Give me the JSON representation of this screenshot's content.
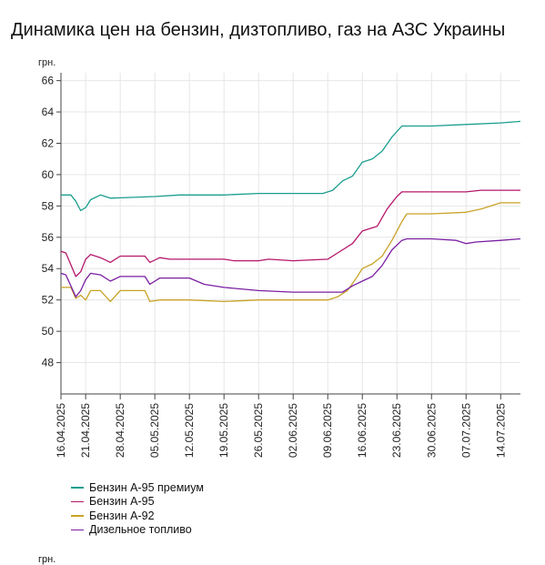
{
  "title": "Динамика цен на бензин, дизтопливо, газ на АЗС Украины",
  "footer_unit": "грн.",
  "chart_data": {
    "type": "line",
    "ylabel": "грн.",
    "ylim": [
      46,
      66.5
    ],
    "yticks": [
      48,
      50,
      52,
      54,
      56,
      58,
      60,
      62,
      64,
      66
    ],
    "x_start": "2025-04-16",
    "x_end": "2025-07-18",
    "xticks": [
      "16.04.2025",
      "21.04.2025",
      "28.04.2025",
      "05.05.2025",
      "12.05.2025",
      "19.05.2025",
      "26.05.2025",
      "02.06.2025",
      "09.06.2025",
      "16.06.2025",
      "23.06.2025",
      "30.06.2025",
      "07.07.2025",
      "14.07.2025"
    ],
    "series": [
      {
        "name": "Бензин А-95 премиум",
        "color": "#1a9e8f",
        "points": [
          [
            "16.04.2025",
            58.7
          ],
          [
            "18.04.2025",
            58.7
          ],
          [
            "19.04.2025",
            58.3
          ],
          [
            "20.04.2025",
            57.7
          ],
          [
            "21.04.2025",
            57.9
          ],
          [
            "22.04.2025",
            58.4
          ],
          [
            "24.04.2025",
            58.7
          ],
          [
            "26.04.2025",
            58.5
          ],
          [
            "05.05.2025",
            58.6
          ],
          [
            "10.05.2025",
            58.7
          ],
          [
            "19.05.2025",
            58.7
          ],
          [
            "26.05.2025",
            58.8
          ],
          [
            "02.06.2025",
            58.8
          ],
          [
            "08.06.2025",
            58.8
          ],
          [
            "10.06.2025",
            59.0
          ],
          [
            "12.06.2025",
            59.6
          ],
          [
            "14.06.2025",
            59.9
          ],
          [
            "16.06.2025",
            60.8
          ],
          [
            "18.06.2025",
            61.0
          ],
          [
            "20.06.2025",
            61.5
          ],
          [
            "22.06.2025",
            62.4
          ],
          [
            "24.06.2025",
            63.1
          ],
          [
            "30.06.2025",
            63.1
          ],
          [
            "07.07.2025",
            63.2
          ],
          [
            "14.07.2025",
            63.3
          ],
          [
            "18.07.2025",
            63.4
          ]
        ]
      },
      {
        "name": "Бензин А-95",
        "color": "#b5176b",
        "points": [
          [
            "16.04.2025",
            55.1
          ],
          [
            "17.04.2025",
            55.0
          ],
          [
            "19.04.2025",
            53.5
          ],
          [
            "20.04.2025",
            53.8
          ],
          [
            "21.04.2025",
            54.6
          ],
          [
            "22.04.2025",
            54.9
          ],
          [
            "24.04.2025",
            54.7
          ],
          [
            "26.04.2025",
            54.4
          ],
          [
            "28.04.2025",
            54.8
          ],
          [
            "03.05.2025",
            54.8
          ],
          [
            "04.05.2025",
            54.4
          ],
          [
            "06.05.2025",
            54.7
          ],
          [
            "08.05.2025",
            54.6
          ],
          [
            "12.05.2025",
            54.6
          ],
          [
            "19.05.2025",
            54.6
          ],
          [
            "21.05.2025",
            54.5
          ],
          [
            "26.05.2025",
            54.5
          ],
          [
            "28.05.2025",
            54.6
          ],
          [
            "02.06.2025",
            54.5
          ],
          [
            "09.06.2025",
            54.6
          ],
          [
            "11.06.2025",
            55.0
          ],
          [
            "14.06.2025",
            55.6
          ],
          [
            "16.06.2025",
            56.4
          ],
          [
            "19.06.2025",
            56.7
          ],
          [
            "21.06.2025",
            57.8
          ],
          [
            "23.06.2025",
            58.6
          ],
          [
            "24.06.2025",
            58.9
          ],
          [
            "30.06.2025",
            58.9
          ],
          [
            "07.07.2025",
            58.9
          ],
          [
            "10.07.2025",
            59.0
          ],
          [
            "18.07.2025",
            59.0
          ]
        ]
      },
      {
        "name": "Бензин А-92",
        "color": "#c9a227",
        "points": [
          [
            "16.04.2025",
            52.8
          ],
          [
            "18.04.2025",
            52.8
          ],
          [
            "19.04.2025",
            52.1
          ],
          [
            "20.04.2025",
            52.3
          ],
          [
            "21.04.2025",
            52.0
          ],
          [
            "22.04.2025",
            52.6
          ],
          [
            "24.04.2025",
            52.6
          ],
          [
            "26.04.2025",
            51.9
          ],
          [
            "28.04.2025",
            52.6
          ],
          [
            "03.05.2025",
            52.6
          ],
          [
            "04.05.2025",
            51.9
          ],
          [
            "06.05.2025",
            52.0
          ],
          [
            "12.05.2025",
            52.0
          ],
          [
            "19.05.2025",
            51.9
          ],
          [
            "26.05.2025",
            52.0
          ],
          [
            "02.06.2025",
            52.0
          ],
          [
            "09.06.2025",
            52.0
          ],
          [
            "11.06.2025",
            52.2
          ],
          [
            "13.06.2025",
            52.6
          ],
          [
            "15.06.2025",
            53.5
          ],
          [
            "16.06.2025",
            54.0
          ],
          [
            "18.06.2025",
            54.3
          ],
          [
            "20.06.2025",
            54.8
          ],
          [
            "22.06.2025",
            55.8
          ],
          [
            "24.06.2025",
            57.0
          ],
          [
            "25.06.2025",
            57.5
          ],
          [
            "30.06.2025",
            57.5
          ],
          [
            "07.07.2025",
            57.6
          ],
          [
            "10.07.2025",
            57.8
          ],
          [
            "14.07.2025",
            58.2
          ],
          [
            "18.07.2025",
            58.2
          ]
        ]
      },
      {
        "name": "Дизельное топливо",
        "color": "#7b1fa2",
        "points": [
          [
            "16.04.2025",
            53.7
          ],
          [
            "17.04.2025",
            53.6
          ],
          [
            "19.04.2025",
            52.2
          ],
          [
            "20.04.2025",
            52.6
          ],
          [
            "21.04.2025",
            53.3
          ],
          [
            "22.04.2025",
            53.7
          ],
          [
            "24.04.2025",
            53.6
          ],
          [
            "26.04.2025",
            53.2
          ],
          [
            "28.04.2025",
            53.5
          ],
          [
            "03.05.2025",
            53.5
          ],
          [
            "04.05.2025",
            53.0
          ],
          [
            "06.05.2025",
            53.4
          ],
          [
            "12.05.2025",
            53.4
          ],
          [
            "15.05.2025",
            53.0
          ],
          [
            "19.05.2025",
            52.8
          ],
          [
            "26.05.2025",
            52.6
          ],
          [
            "02.06.2025",
            52.5
          ],
          [
            "09.06.2025",
            52.5
          ],
          [
            "12.06.2025",
            52.5
          ],
          [
            "14.06.2025",
            52.9
          ],
          [
            "16.06.2025",
            53.2
          ],
          [
            "18.06.2025",
            53.5
          ],
          [
            "20.06.2025",
            54.2
          ],
          [
            "22.06.2025",
            55.2
          ],
          [
            "24.06.2025",
            55.8
          ],
          [
            "25.06.2025",
            55.9
          ],
          [
            "30.06.2025",
            55.9
          ],
          [
            "05.07.2025",
            55.8
          ],
          [
            "07.07.2025",
            55.6
          ],
          [
            "09.07.2025",
            55.7
          ],
          [
            "14.07.2025",
            55.8
          ],
          [
            "18.07.2025",
            55.9
          ]
        ]
      }
    ]
  }
}
